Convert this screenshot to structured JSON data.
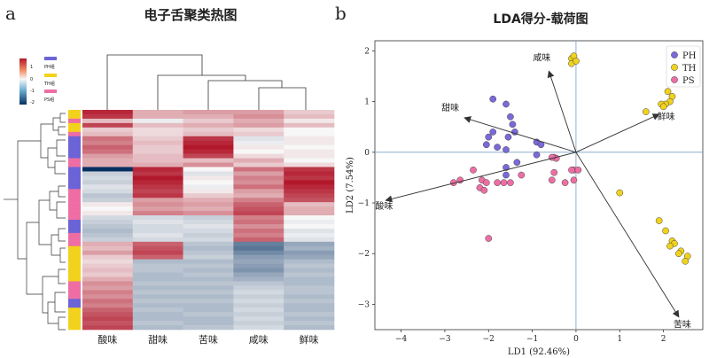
{
  "panel_a": {
    "letter": "a",
    "title": "电子舌聚类热图",
    "colorbar_ticks": [
      "1",
      "0",
      "-1",
      "-2"
    ],
    "group_legend": [
      {
        "label": "PH组",
        "color": "#6b63d6"
      },
      {
        "label": "TH组",
        "color": "#f2d21c"
      },
      {
        "label": "PS组",
        "color": "#ee6ea4"
      }
    ],
    "columns": [
      "酸味",
      "甜味",
      "苦味",
      "咸味",
      "鲜味"
    ]
  },
  "panel_b": {
    "letter": "b",
    "title": "LDA得分-载荷图"
  },
  "chart_data": [
    {
      "type": "heatmap",
      "title": "电子舌聚类热图",
      "columns": [
        "酸味",
        "甜味",
        "苦味",
        "咸味",
        "鲜味"
      ],
      "color_scale": {
        "min": -2,
        "max": 1.5,
        "low_color": "#053061",
        "mid_color": "#f7f7f7",
        "high_color": "#b2182b"
      },
      "row_groups": [
        "TH",
        "TH",
        "PS",
        "TH",
        "TH",
        "PS",
        "PH",
        "PH",
        "PH",
        "PH",
        "PH",
        "PS",
        "PS",
        "PH",
        "PH",
        "PH",
        "PH",
        "PH",
        "PS",
        "PS",
        "PS",
        "PS",
        "PS",
        "PS",
        "PS",
        "PH",
        "PH",
        "PH",
        "PS",
        "PS",
        "PS",
        "TH",
        "TH",
        "TH",
        "TH",
        "TH",
        "TH",
        "TH",
        "TH",
        "PS",
        "PS",
        "PS",
        "PS",
        "PH",
        "PH",
        "TH",
        "TH",
        "TH",
        "TH",
        "TH"
      ],
      "rows": [
        [
          1.4,
          0.5,
          0.6,
          0.6,
          0.3
        ],
        [
          1.3,
          0.5,
          0.5,
          0.7,
          0.4
        ],
        [
          0.4,
          -0.1,
          0.3,
          0.5,
          0.1
        ],
        [
          1.2,
          0.4,
          0.5,
          0.6,
          0.4
        ],
        [
          0.3,
          0.2,
          0.3,
          0.2,
          0.0
        ],
        [
          0.4,
          0.2,
          0.4,
          0.3,
          0.0
        ],
        [
          0.9,
          0.3,
          1.3,
          -0.2,
          0.1
        ],
        [
          0.8,
          0.4,
          1.4,
          -0.1,
          0.1
        ],
        [
          1.0,
          0.3,
          1.5,
          0.1,
          0.0
        ],
        [
          0.9,
          0.3,
          1.4,
          0.0,
          0.1
        ],
        [
          0.6,
          0.4,
          1.2,
          0.2,
          0.1
        ],
        [
          0.5,
          0.4,
          0.4,
          0.5,
          0.0
        ],
        [
          0.5,
          0.5,
          0.7,
          0.3,
          0.2
        ],
        [
          -2.0,
          1.4,
          0.0,
          0.9,
          1.3
        ],
        [
          -0.4,
          1.3,
          -0.2,
          0.6,
          1.4
        ],
        [
          -0.3,
          1.5,
          0.1,
          0.8,
          1.3
        ],
        [
          -0.4,
          1.4,
          0.0,
          0.7,
          1.5
        ],
        [
          -0.2,
          1.3,
          -0.1,
          0.9,
          1.4
        ],
        [
          -0.3,
          1.2,
          0.1,
          0.6,
          1.3
        ],
        [
          -0.5,
          1.3,
          0.3,
          0.5,
          1.2
        ],
        [
          -0.4,
          0.6,
          0.5,
          0.8,
          1.1
        ],
        [
          0.1,
          0.7,
          0.6,
          1.0,
          0.4
        ],
        [
          0.0,
          0.6,
          0.5,
          1.1,
          0.5
        ],
        [
          0.1,
          0.8,
          0.7,
          1.2,
          0.5
        ],
        [
          -0.3,
          -0.3,
          -0.4,
          0.8,
          0.0
        ],
        [
          -0.4,
          -0.2,
          -0.3,
          0.9,
          -0.1
        ],
        [
          -0.5,
          -0.3,
          -0.2,
          0.7,
          0.0
        ],
        [
          -0.6,
          -0.3,
          -0.3,
          0.9,
          -0.2
        ],
        [
          -0.5,
          -0.2,
          -0.4,
          0.8,
          -0.1
        ],
        [
          -0.4,
          -0.3,
          -0.3,
          1.0,
          -0.2
        ],
        [
          0.5,
          1.0,
          -0.5,
          -1.2,
          -0.8
        ],
        [
          0.4,
          1.1,
          -0.6,
          -1.3,
          -0.7
        ],
        [
          0.6,
          1.2,
          -0.5,
          -1.1,
          -0.9
        ],
        [
          0.3,
          1.0,
          -0.4,
          -0.9,
          -0.8
        ],
        [
          0.2,
          -0.6,
          -0.6,
          -0.8,
          -0.6
        ],
        [
          0.3,
          -0.5,
          -0.5,
          -0.9,
          -0.5
        ],
        [
          0.4,
          -0.5,
          -0.6,
          -1.0,
          -0.6
        ],
        [
          0.3,
          -0.6,
          -0.5,
          -0.8,
          -0.5
        ],
        [
          0.5,
          -0.6,
          -0.6,
          -0.7,
          -0.6
        ],
        [
          0.7,
          -0.5,
          -0.5,
          -0.5,
          -0.6
        ],
        [
          0.6,
          -0.6,
          -0.6,
          -0.4,
          -0.5
        ],
        [
          0.8,
          -0.5,
          -0.5,
          -0.3,
          -0.5
        ],
        [
          0.7,
          -0.6,
          -0.6,
          -0.4,
          -0.6
        ],
        [
          0.9,
          -0.5,
          -0.5,
          -0.3,
          -0.5
        ],
        [
          0.8,
          -0.6,
          -0.6,
          -0.4,
          -0.6
        ],
        [
          1.0,
          -0.5,
          -0.6,
          -0.3,
          -0.6
        ],
        [
          1.1,
          -0.6,
          -0.5,
          -0.4,
          -0.5
        ],
        [
          1.2,
          -0.6,
          -0.6,
          -0.3,
          -0.6
        ],
        [
          1.1,
          -0.5,
          -0.6,
          -0.4,
          -0.5
        ],
        [
          1.2,
          -0.6,
          -0.5,
          -0.3,
          -0.6
        ]
      ]
    },
    {
      "type": "scatter",
      "title": "LDA得分-载荷图",
      "xlabel": "LD1 (92.46%)",
      "ylabel": "LD2 (7.54%)",
      "xlim": [
        -4.6,
        2.9
      ],
      "ylim": [
        -3.5,
        2.2
      ],
      "xticks": [
        -4,
        -3,
        -2,
        -1,
        0,
        1,
        2
      ],
      "yticks": [
        -3,
        -2,
        -1,
        0,
        1,
        2
      ],
      "reference_lines": {
        "x": 0,
        "y": 0
      },
      "legend_position": "top-right",
      "series": [
        {
          "name": "PH",
          "color": "#7b68d9",
          "points": [
            [
              -1.9,
              1.05
            ],
            [
              -1.6,
              0.95
            ],
            [
              -1.5,
              0.7
            ],
            [
              -1.45,
              0.55
            ],
            [
              -1.4,
              0.4
            ],
            [
              -1.55,
              0.3
            ],
            [
              -1.9,
              0.4
            ],
            [
              -2.0,
              0.3
            ],
            [
              -2.05,
              0.15
            ],
            [
              -1.8,
              0.1
            ],
            [
              -1.6,
              0.05
            ],
            [
              -0.9,
              0.2
            ],
            [
              -0.8,
              0.15
            ],
            [
              -0.9,
              -0.05
            ],
            [
              -1.35,
              -0.2
            ],
            [
              -1.6,
              -0.3
            ],
            [
              -1.6,
              -0.45
            ]
          ]
        },
        {
          "name": "TH",
          "color": "#f0d21c",
          "points": [
            [
              -0.1,
              1.85
            ],
            [
              -0.05,
              1.9
            ],
            [
              -0.1,
              1.75
            ],
            [
              0.0,
              1.8
            ],
            [
              2.1,
              1.2
            ],
            [
              2.2,
              1.1
            ],
            [
              2.15,
              1.0
            ],
            [
              2.05,
              0.95
            ],
            [
              1.95,
              0.95
            ],
            [
              2.0,
              0.9
            ],
            [
              1.6,
              0.8
            ],
            [
              1.0,
              -0.8
            ],
            [
              1.9,
              -1.35
            ],
            [
              2.05,
              -1.55
            ],
            [
              2.2,
              -1.75
            ],
            [
              2.25,
              -1.8
            ],
            [
              2.15,
              -1.85
            ],
            [
              2.4,
              -1.95
            ],
            [
              2.35,
              -2.0
            ],
            [
              2.55,
              -2.05
            ],
            [
              2.5,
              -2.15
            ]
          ]
        },
        {
          "name": "PS",
          "color": "#ee6ea4",
          "points": [
            [
              -2.35,
              -0.35
            ],
            [
              -2.65,
              -0.55
            ],
            [
              -2.8,
              -0.6
            ],
            [
              -2.15,
              -0.55
            ],
            [
              -2.05,
              -0.6
            ],
            [
              -2.2,
              -0.7
            ],
            [
              -2.1,
              -0.75
            ],
            [
              -1.8,
              -0.6
            ],
            [
              -1.65,
              -0.6
            ],
            [
              -1.5,
              -0.6
            ],
            [
              -1.25,
              -0.45
            ],
            [
              -0.5,
              -0.4
            ],
            [
              -0.55,
              -0.55
            ],
            [
              -0.25,
              -0.6
            ],
            [
              -0.05,
              -0.55
            ],
            [
              -0.05,
              -0.35
            ],
            [
              -0.1,
              -0.35
            ],
            [
              0.05,
              -0.35
            ],
            [
              -0.5,
              -0.1
            ],
            [
              -0.45,
              -0.12
            ],
            [
              -0.55,
              -0.1
            ],
            [
              -2.0,
              -1.7
            ]
          ]
        }
      ],
      "loadings": [
        {
          "label": "咸味",
          "x": -0.62,
          "y": 1.6
        },
        {
          "label": "甜味",
          "x": -2.55,
          "y": 0.68
        },
        {
          "label": "鲜味",
          "x": 1.9,
          "y": 0.75
        },
        {
          "label": "酸味",
          "x": -4.35,
          "y": -0.95
        },
        {
          "label": "苦味",
          "x": 2.35,
          "y": -3.25
        }
      ]
    }
  ]
}
